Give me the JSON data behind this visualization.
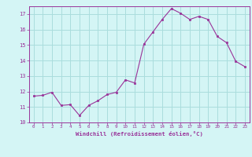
{
  "x": [
    0,
    1,
    2,
    3,
    4,
    5,
    6,
    7,
    8,
    9,
    10,
    11,
    12,
    13,
    14,
    15,
    16,
    17,
    18,
    19,
    20,
    21,
    22,
    23
  ],
  "y": [
    11.7,
    11.75,
    11.95,
    11.1,
    11.15,
    10.45,
    11.1,
    11.4,
    11.8,
    11.95,
    12.75,
    12.55,
    15.05,
    15.85,
    16.65,
    17.35,
    17.05,
    16.65,
    16.85,
    16.65,
    15.55,
    15.15,
    13.95,
    13.6
  ],
  "line_color": "#993399",
  "marker_color": "#993399",
  "bg_color": "#d4f5f5",
  "grid_color": "#aadddd",
  "xlabel": "Windchill (Refroidissement éolien,°C)",
  "xlabel_color": "#993399",
  "tick_color": "#993399",
  "ylim": [
    10,
    17.5
  ],
  "yticks": [
    10,
    11,
    12,
    13,
    14,
    15,
    16,
    17
  ],
  "xlim": [
    -0.5,
    23.5
  ],
  "xticks": [
    0,
    1,
    2,
    3,
    4,
    5,
    6,
    7,
    8,
    9,
    10,
    11,
    12,
    13,
    14,
    15,
    16,
    17,
    18,
    19,
    20,
    21,
    22,
    23
  ],
  "figsize": [
    3.2,
    2.0
  ],
  "dpi": 100
}
